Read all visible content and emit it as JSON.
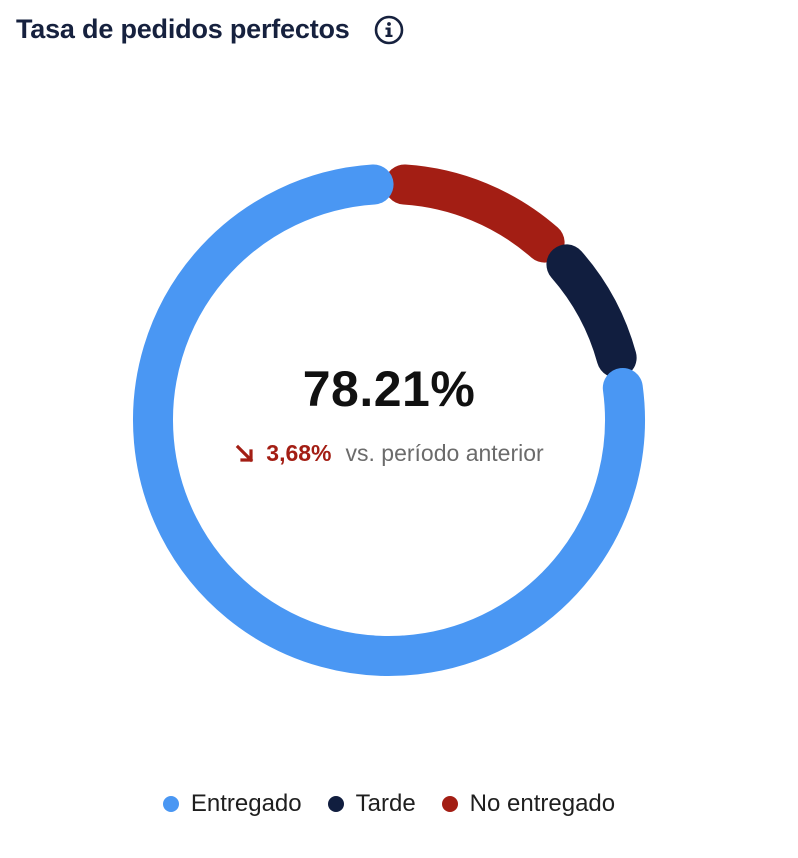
{
  "header": {
    "title": "Tasa de pedidos perfectos",
    "info_icon": "info-circle-icon"
  },
  "summary": {
    "value": "78.21%",
    "delta": "3,68%",
    "delta_direction": "down",
    "delta_caption": "vs. período anterior",
    "delta_color": "#a31e14"
  },
  "chart_data": {
    "type": "pie",
    "variant": "donut",
    "start_at": "top",
    "series": [
      {
        "name": "No entregado",
        "value": 12.5,
        "color": "#a31e14"
      },
      {
        "name": "Tarde",
        "value": 9.29,
        "color": "#111e3f"
      },
      {
        "name": "Entregado",
        "value": 78.21,
        "color": "#4a97f3"
      }
    ],
    "legend_position": "bottom"
  },
  "legend": {
    "items": [
      {
        "label": "Entregado",
        "color": "#4a97f3"
      },
      {
        "label": "Tarde",
        "color": "#111e3f"
      },
      {
        "label": "No entregado",
        "color": "#a31e14"
      }
    ]
  }
}
